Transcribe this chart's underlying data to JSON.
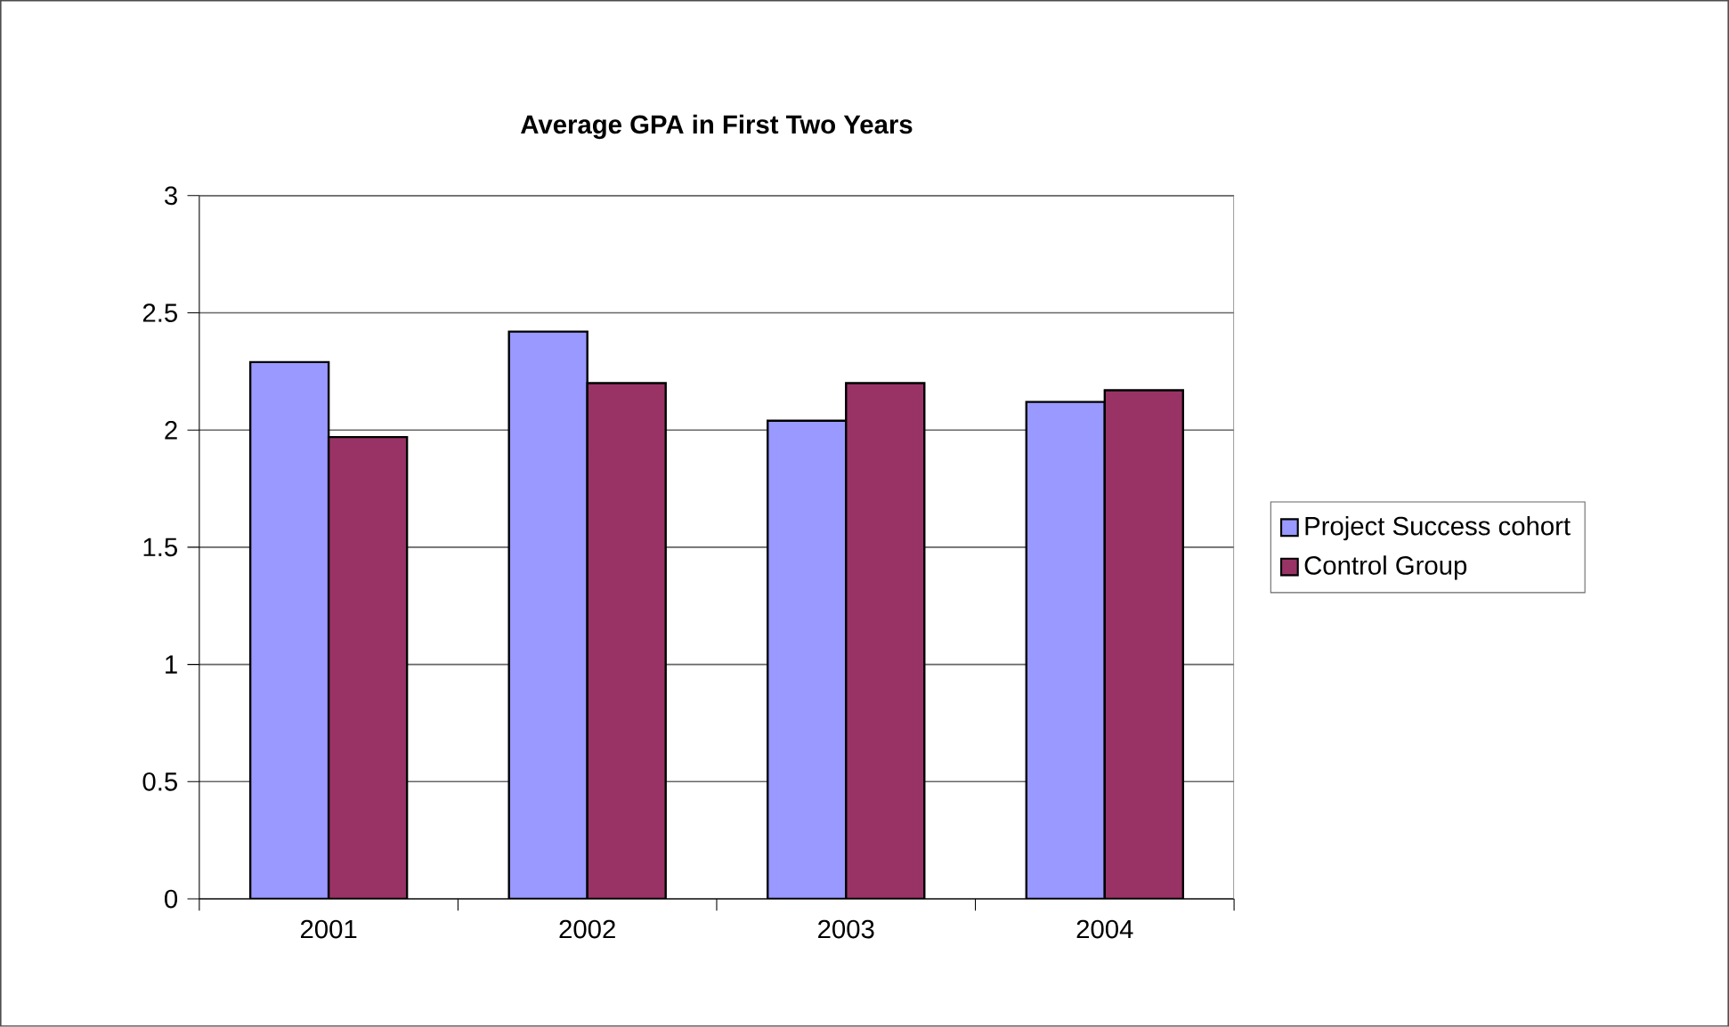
{
  "chart_data": {
    "type": "bar",
    "title": "Average GPA in First Two Years",
    "categories": [
      "2001",
      "2002",
      "2003",
      "2004"
    ],
    "series": [
      {
        "name": "Project Success cohort",
        "color": "#9999ff",
        "values": [
          2.29,
          2.42,
          2.04,
          2.12
        ]
      },
      {
        "name": "Control Group",
        "color": "#993366",
        "values": [
          1.97,
          2.2,
          2.2,
          2.17
        ]
      }
    ],
    "ylim": [
      0,
      3
    ],
    "yticks": [
      0,
      0.5,
      1,
      1.5,
      2,
      2.5,
      3
    ],
    "grid": "y",
    "legend": "right"
  }
}
